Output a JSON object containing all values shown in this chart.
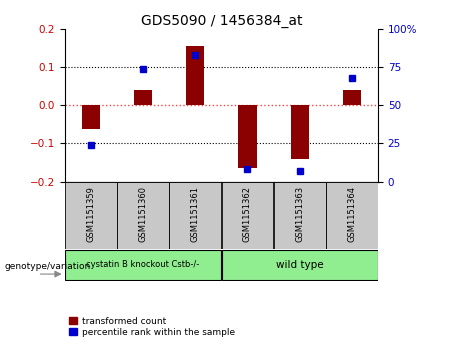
{
  "title": "GDS5090 / 1456384_at",
  "samples": [
    "GSM1151359",
    "GSM1151360",
    "GSM1151361",
    "GSM1151362",
    "GSM1151363",
    "GSM1151364"
  ],
  "red_values": [
    -0.062,
    0.04,
    0.155,
    -0.165,
    -0.14,
    0.04
  ],
  "blue_values": [
    24,
    74,
    83,
    8,
    7,
    68
  ],
  "ylim_left": [
    -0.2,
    0.2
  ],
  "ylim_right": [
    0,
    100
  ],
  "yticks_left": [
    -0.2,
    -0.1,
    0.0,
    0.1,
    0.2
  ],
  "yticks_right": [
    0,
    25,
    50,
    75,
    100
  ],
  "ytick_labels_right": [
    "0",
    "25",
    "50",
    "75",
    "100%"
  ],
  "group1_label": "cystatin B knockout Cstb-/-",
  "group2_label": "wild type",
  "group1_color": "#90EE90",
  "group2_color": "#90EE90",
  "bar_color": "#8B0000",
  "dot_color": "#0000CD",
  "bg_color": "#FFFFFF",
  "plot_bg_color": "#FFFFFF",
  "box_bg_color": "#C8C8C8",
  "legend_red_label": "transformed count",
  "legend_blue_label": "percentile rank within the sample",
  "zero_line_color": "#FF4444",
  "genotype_label": "genotype/variation"
}
